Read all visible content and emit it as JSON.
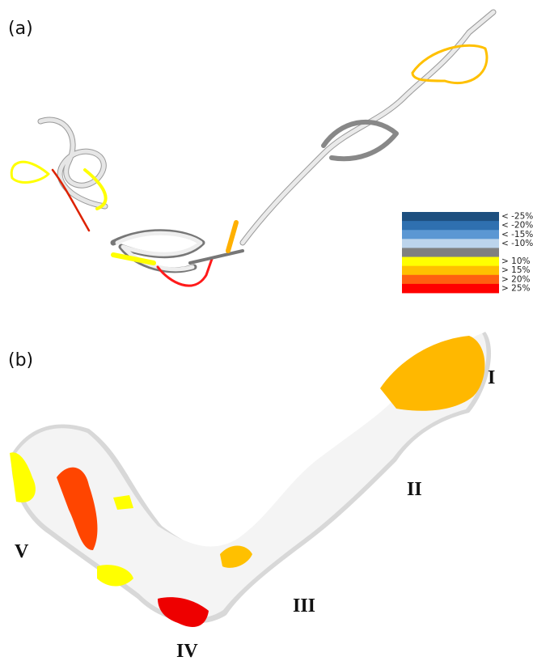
{
  "panels": [
    {
      "label": "(a)"
    },
    {
      "label": "(b)"
    }
  ],
  "legend": {
    "items": [
      {
        "label": "< -25%",
        "color": "#1d4f7f"
      },
      {
        "label": "< -20%",
        "color": "#2f70b0"
      },
      {
        "label": "< -15%",
        "color": "#5b97d3"
      },
      {
        "label": "< -10%",
        "color": "#bcd4ec"
      },
      {
        "color": "#808080"
      },
      {
        "label": "> 10%",
        "color": "#ffff00"
      },
      {
        "label": "> 15%",
        "color": "#ffc000"
      },
      {
        "label": "> 20%",
        "color": "#ff6010"
      },
      {
        "label": "> 25%",
        "color": "#ff0000"
      }
    ]
  },
  "domains": [
    "I",
    "II",
    "III",
    "IV",
    "V"
  ]
}
